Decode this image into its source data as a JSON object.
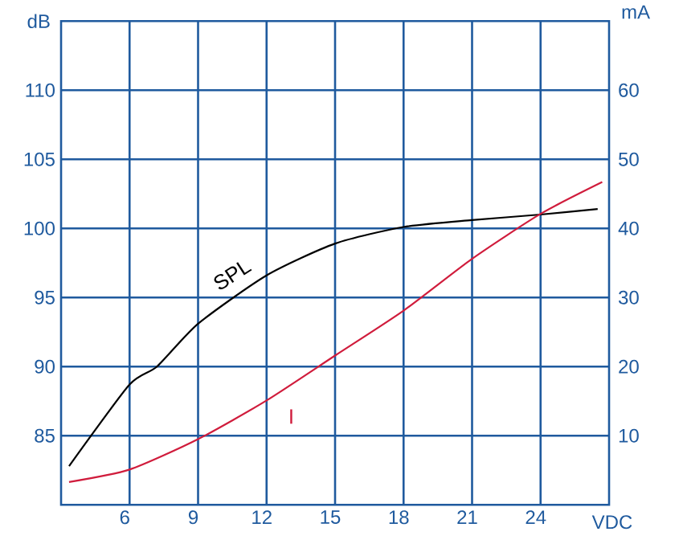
{
  "chart_data": {
    "type": "line",
    "xlabel": "VDC",
    "ylabel": "dB",
    "y2label": "mA",
    "xlim": [
      3,
      27
    ],
    "xticks": [
      6,
      9,
      12,
      15,
      18,
      21,
      24
    ],
    "ylim": [
      80,
      115
    ],
    "yticks": [
      85,
      90,
      95,
      100,
      105,
      110
    ],
    "y2lim": [
      0,
      70
    ],
    "y2ticks": [
      10,
      20,
      30,
      40,
      50,
      60
    ],
    "grid": true,
    "series": [
      {
        "name": "SPL",
        "color": "#000000",
        "x": [
          3.35,
          6,
          7.2,
          9,
          12,
          15,
          18,
          21,
          24,
          26.5
        ],
        "values": [
          82.8,
          88.7,
          90,
          93.1,
          96.6,
          98.9,
          100.1,
          100.6,
          101.0,
          101.4
        ]
      },
      {
        "name": "I",
        "color": "#d01c3c",
        "axis": "y2",
        "x": [
          3.35,
          6,
          9,
          12,
          15,
          18,
          21,
          24,
          26.7
        ],
        "values": [
          3.3,
          5.1,
          9.5,
          15.1,
          21.6,
          28.1,
          35.6,
          42.1,
          46.7
        ]
      }
    ]
  }
}
